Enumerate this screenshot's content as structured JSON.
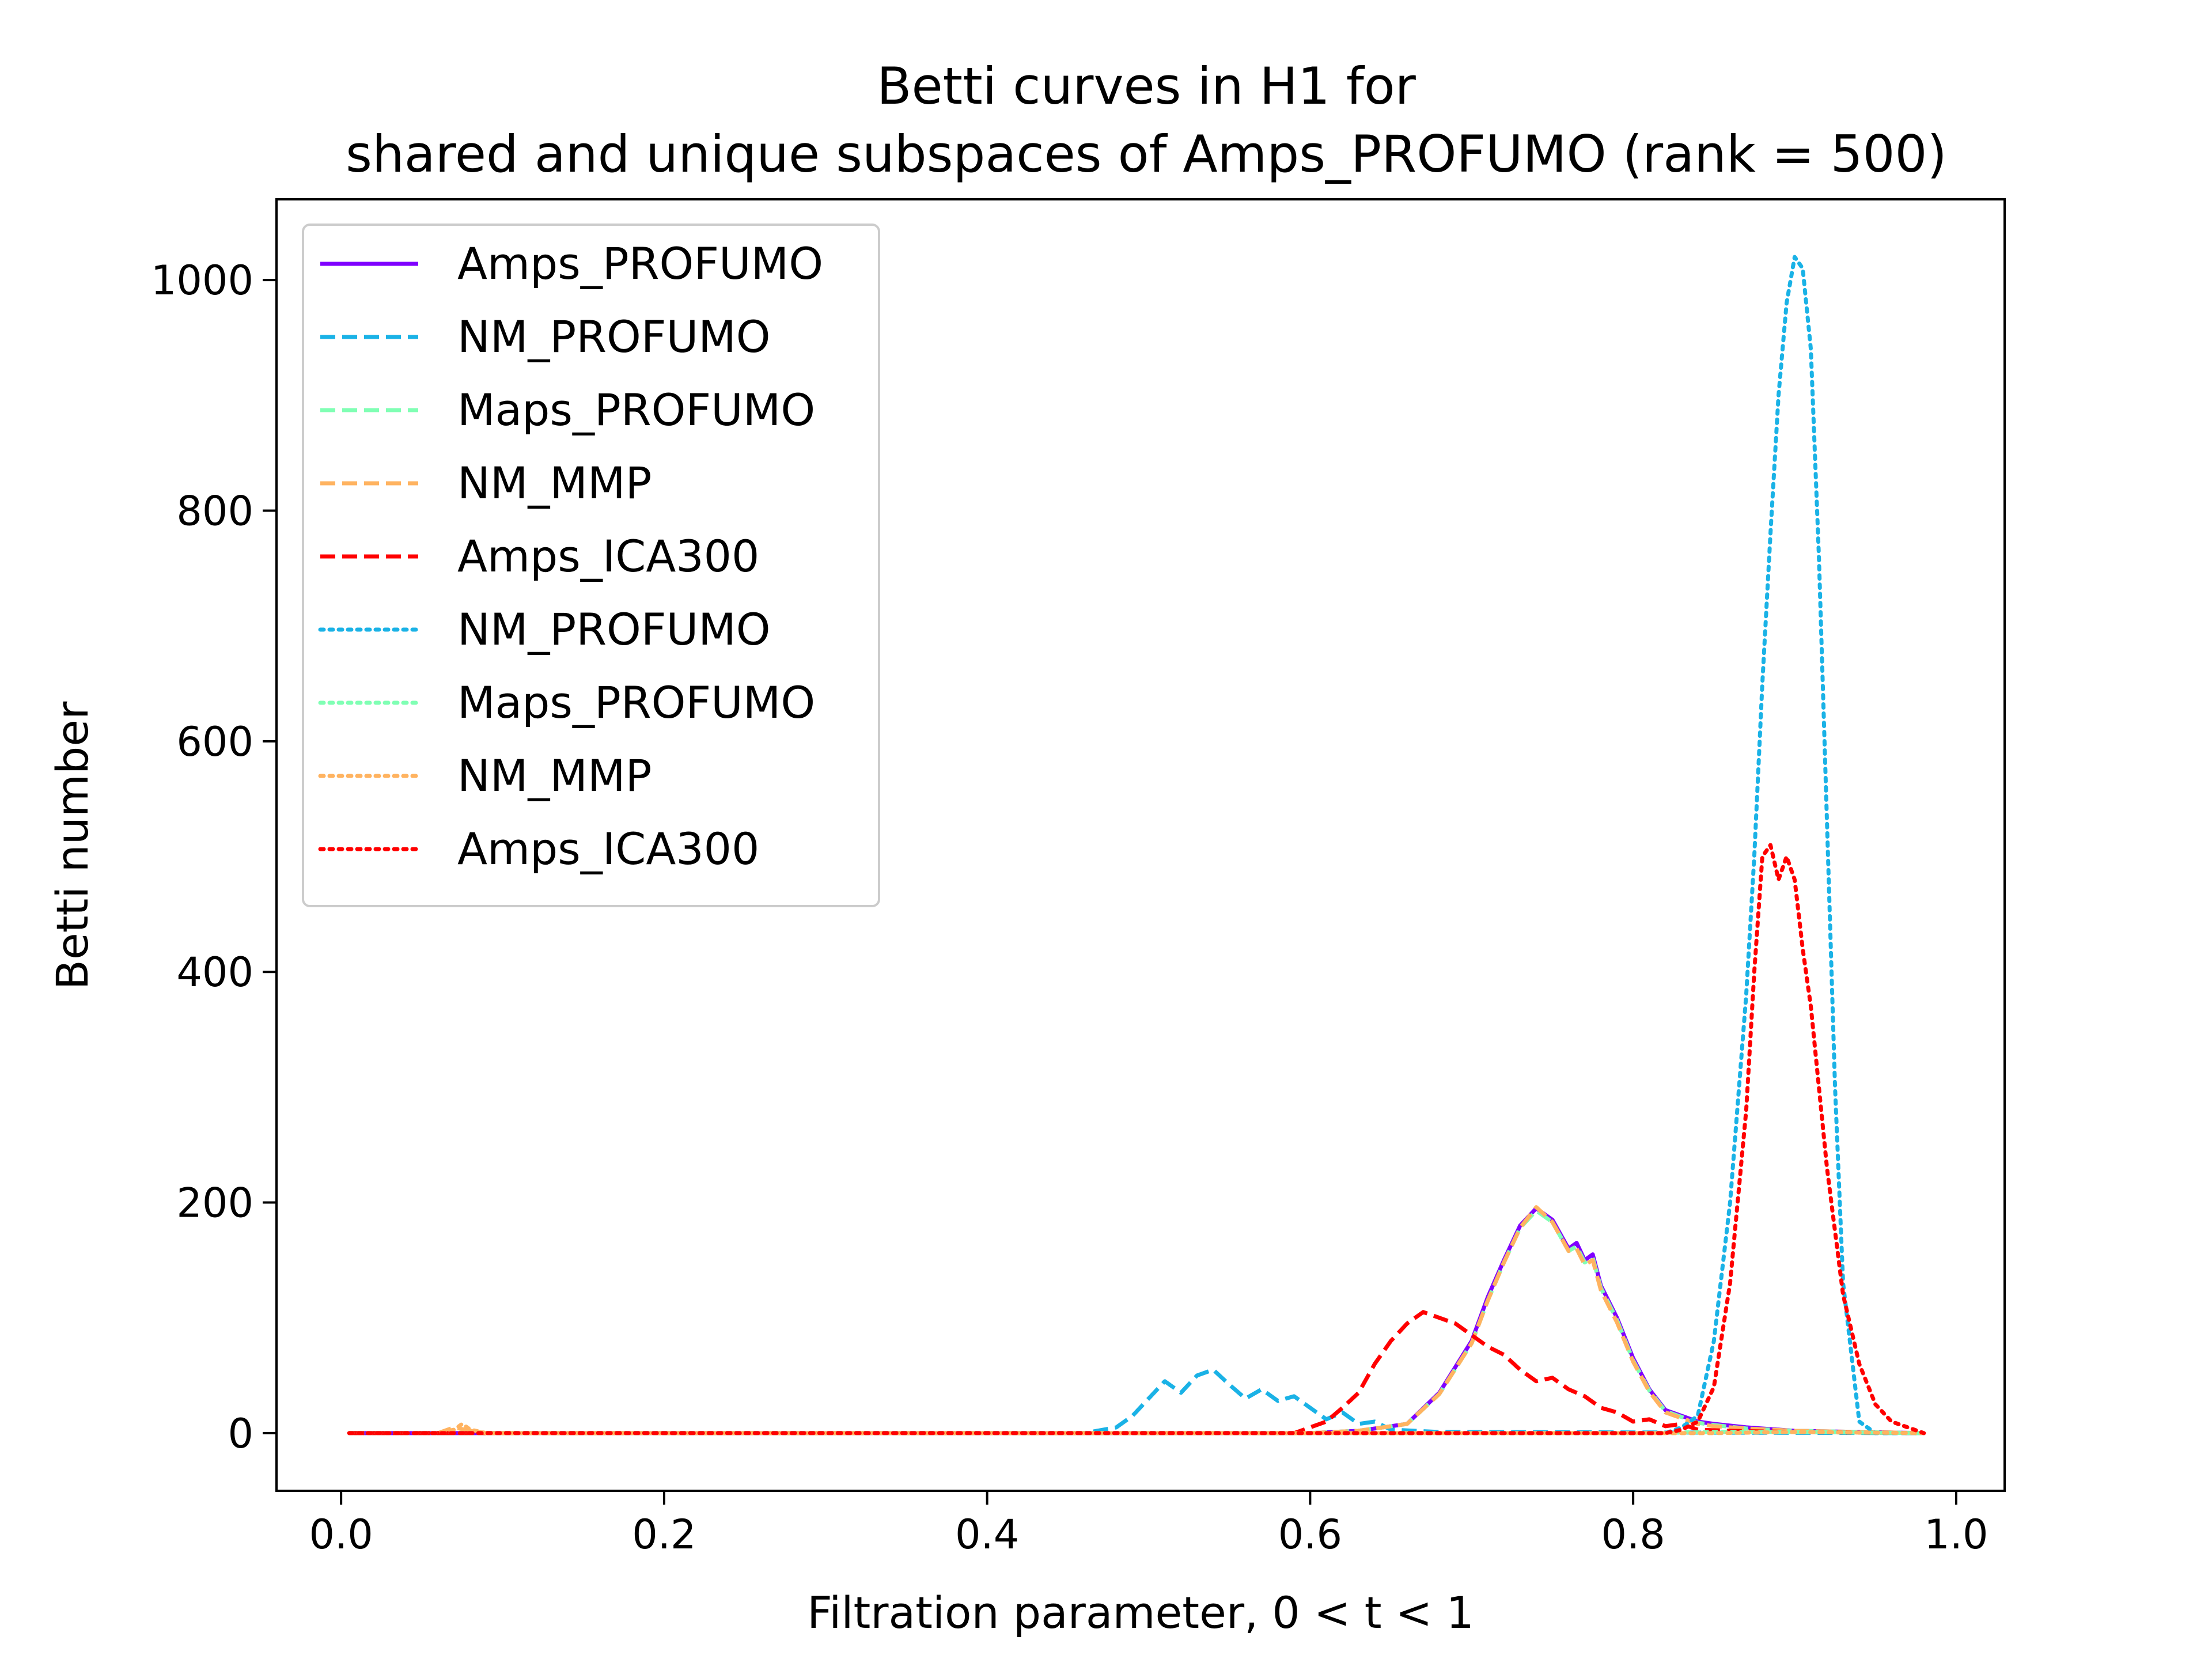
{
  "chart_data": {
    "type": "line",
    "title": "Betti curves in H1 for",
    "subtitle": "shared and unique subspaces of Amps_PROFUMO (rank = 500)",
    "xlabel": "Filtration parameter, 0 < t < 1",
    "ylabel": "Betti number",
    "xlim": [
      -0.04,
      1.03
    ],
    "ylim": [
      -50,
      1070
    ],
    "xticks": [
      0.0,
      0.2,
      0.4,
      0.6,
      0.8,
      1.0
    ],
    "xtick_labels": [
      "0.0",
      "0.2",
      "0.4",
      "0.6",
      "0.8",
      "1.0"
    ],
    "yticks": [
      0,
      200,
      400,
      600,
      800,
      1000
    ],
    "ytick_labels": [
      "0",
      "200",
      "400",
      "600",
      "800",
      "1000"
    ],
    "grid": false,
    "legend_position": "top-left",
    "series": [
      {
        "name": "Amps_PROFUMO",
        "color": "#8000ff",
        "style": "solid",
        "x": [
          0.005,
          0.6,
          0.63,
          0.66,
          0.68,
          0.7,
          0.71,
          0.72,
          0.73,
          0.74,
          0.75,
          0.76,
          0.765,
          0.77,
          0.775,
          0.78,
          0.79,
          0.8,
          0.81,
          0.82,
          0.83,
          0.84,
          0.85,
          0.87,
          0.9,
          0.98
        ],
        "y": [
          0,
          0,
          2,
          8,
          35,
          80,
          118,
          150,
          180,
          195,
          185,
          160,
          165,
          150,
          155,
          128,
          100,
          65,
          38,
          20,
          15,
          10,
          8,
          5,
          2,
          0
        ]
      },
      {
        "name": "NM_PROFUMO",
        "color": "#1ab2e6",
        "style": "dashed",
        "x": [
          0.005,
          0.46,
          0.48,
          0.49,
          0.5,
          0.51,
          0.52,
          0.53,
          0.54,
          0.55,
          0.56,
          0.57,
          0.58,
          0.59,
          0.6,
          0.61,
          0.62,
          0.63,
          0.64,
          0.65,
          0.68,
          0.98
        ],
        "y": [
          0,
          0,
          5,
          15,
          30,
          45,
          35,
          50,
          55,
          42,
          30,
          38,
          28,
          32,
          22,
          12,
          18,
          8,
          10,
          3,
          1,
          0
        ]
      },
      {
        "name": "Maps_PROFUMO",
        "color": "#80ffb4",
        "style": "dashed",
        "x": [
          0.005,
          0.6,
          0.63,
          0.66,
          0.68,
          0.7,
          0.71,
          0.72,
          0.73,
          0.74,
          0.75,
          0.76,
          0.765,
          0.77,
          0.775,
          0.78,
          0.79,
          0.8,
          0.81,
          0.82,
          0.83,
          0.84,
          0.85,
          0.87,
          0.9,
          0.98
        ],
        "y": [
          0,
          0,
          2,
          8,
          34,
          78,
          115,
          148,
          178,
          193,
          183,
          158,
          162,
          148,
          152,
          126,
          98,
          63,
          37,
          19,
          14,
          9,
          7,
          4,
          2,
          0
        ]
      },
      {
        "name": "NM_MMP",
        "color": "#ffb360",
        "style": "dashed",
        "x": [
          0.005,
          0.06,
          0.07,
          0.08,
          0.09,
          0.6,
          0.63,
          0.66,
          0.68,
          0.7,
          0.71,
          0.72,
          0.73,
          0.74,
          0.75,
          0.76,
          0.765,
          0.77,
          0.775,
          0.78,
          0.79,
          0.8,
          0.81,
          0.82,
          0.83,
          0.84,
          0.85,
          0.87,
          0.9,
          0.98
        ],
        "y": [
          0,
          0,
          5,
          2,
          0,
          0,
          2,
          8,
          34,
          78,
          115,
          148,
          178,
          196,
          183,
          158,
          160,
          146,
          150,
          124,
          96,
          62,
          36,
          18,
          13,
          8,
          6,
          4,
          2,
          0
        ]
      },
      {
        "name": "Amps_ICA300",
        "color": "#ff0000",
        "style": "dashed",
        "x": [
          0.005,
          0.59,
          0.6,
          0.61,
          0.62,
          0.63,
          0.64,
          0.65,
          0.66,
          0.67,
          0.68,
          0.69,
          0.7,
          0.71,
          0.72,
          0.73,
          0.74,
          0.75,
          0.76,
          0.77,
          0.78,
          0.79,
          0.8,
          0.81,
          0.82,
          0.83,
          0.84,
          0.86,
          0.9,
          0.98
        ],
        "y": [
          0,
          0,
          5,
          10,
          22,
          35,
          60,
          80,
          95,
          105,
          100,
          95,
          85,
          75,
          68,
          55,
          45,
          48,
          38,
          32,
          22,
          18,
          10,
          12,
          6,
          8,
          3,
          2,
          1,
          0
        ]
      },
      {
        "name": "NM_PROFUMO",
        "color": "#1ab2e6",
        "style": "dotted",
        "x": [
          0.005,
          0.82,
          0.83,
          0.84,
          0.85,
          0.86,
          0.87,
          0.875,
          0.88,
          0.885,
          0.89,
          0.895,
          0.9,
          0.905,
          0.91,
          0.915,
          0.92,
          0.925,
          0.93,
          0.94,
          0.95,
          0.98
        ],
        "y": [
          0,
          0,
          5,
          15,
          80,
          200,
          380,
          500,
          650,
          780,
          900,
          980,
          1020,
          1010,
          940,
          760,
          530,
          300,
          130,
          10,
          0,
          0
        ]
      },
      {
        "name": "Maps_PROFUMO",
        "color": "#80ffb4",
        "style": "dotted",
        "x": [
          0.005,
          0.8,
          0.85,
          0.9,
          0.98
        ],
        "y": [
          0,
          0,
          1,
          1,
          0
        ]
      },
      {
        "name": "NM_MMP",
        "color": "#ffb360",
        "style": "dotted",
        "x": [
          0.005,
          0.06,
          0.07,
          0.075,
          0.08,
          0.09,
          0.85,
          0.9,
          0.98
        ],
        "y": [
          0,
          0,
          3,
          8,
          3,
          0,
          0,
          1,
          0
        ]
      },
      {
        "name": "Amps_ICA300",
        "color": "#ff0000",
        "style": "dotted",
        "x": [
          0.005,
          0.82,
          0.83,
          0.84,
          0.85,
          0.86,
          0.87,
          0.875,
          0.88,
          0.885,
          0.89,
          0.895,
          0.9,
          0.905,
          0.91,
          0.92,
          0.93,
          0.94,
          0.95,
          0.96,
          0.97,
          0.98
        ],
        "y": [
          0,
          0,
          3,
          10,
          40,
          130,
          280,
          400,
          500,
          510,
          480,
          500,
          480,
          420,
          370,
          230,
          120,
          60,
          25,
          10,
          5,
          0
        ]
      }
    ]
  }
}
